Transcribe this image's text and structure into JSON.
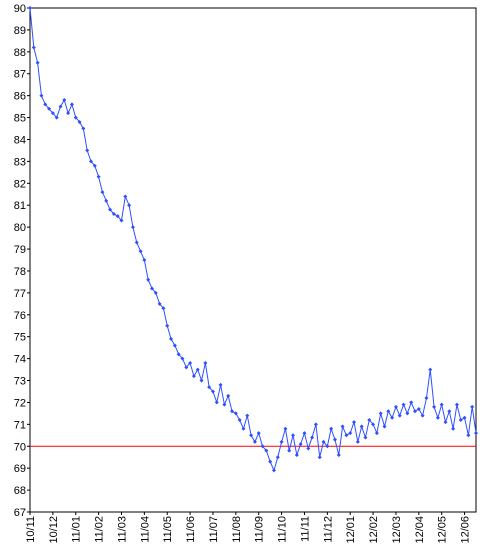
{
  "chart_data": {
    "type": "line",
    "categories": [
      "10/11",
      null,
      null,
      null,
      null,
      null,
      "10/12",
      null,
      null,
      null,
      null,
      null,
      "11/01",
      null,
      null,
      null,
      null,
      null,
      "11/02",
      null,
      null,
      null,
      null,
      null,
      "11/03",
      null,
      null,
      null,
      null,
      null,
      "11/04",
      null,
      null,
      null,
      null,
      null,
      "11/05",
      null,
      null,
      null,
      null,
      null,
      "11/06",
      null,
      null,
      null,
      null,
      null,
      "11/07",
      null,
      null,
      null,
      null,
      null,
      "11/08",
      null,
      null,
      null,
      null,
      null,
      "11/09",
      null,
      null,
      null,
      null,
      null,
      "11/10",
      null,
      null,
      null,
      null,
      null,
      "11/11",
      null,
      null,
      null,
      null,
      null,
      "11/12",
      null,
      null,
      null,
      null,
      null,
      "12/01",
      null,
      null,
      null,
      null,
      null,
      "12/02",
      null,
      null,
      null,
      null,
      null,
      "12/03",
      null,
      null,
      null,
      null,
      null,
      "12/04",
      null,
      null,
      null,
      null,
      null,
      "12/05",
      null,
      null,
      null,
      null,
      null,
      "12/06",
      null,
      null,
      null
    ],
    "series": [
      {
        "color": "#2f4fff",
        "values": [
          90,
          88.2,
          87.5,
          86,
          85.6,
          85.4,
          85.2,
          85,
          85.5,
          85.8,
          85.2,
          85.6,
          85,
          84.8,
          84.5,
          83.5,
          83,
          82.8,
          82.3,
          81.6,
          81.2,
          80.8,
          80.6,
          80.5,
          80.3,
          81.4,
          81,
          80,
          79.3,
          78.9,
          78.5,
          77.6,
          77.2,
          77,
          76.5,
          76.3,
          75.5,
          74.9,
          74.6,
          74.2,
          74,
          73.6,
          73.8,
          73.2,
          73.5,
          73,
          73.8,
          72.7,
          72.5,
          72,
          72.8,
          71.9,
          72.3,
          71.6,
          71.5,
          71.2,
          70.8,
          71.4,
          70.5,
          70.2,
          70.6,
          70,
          69.8,
          69.3,
          68.9,
          69.5,
          70.2,
          70.8,
          69.8,
          70.5,
          69.6,
          70.1,
          70.6,
          69.9,
          70.4,
          71,
          69.5,
          70.2,
          70,
          70.8,
          70.3,
          69.6,
          70.9,
          70.5,
          70.6,
          71.1,
          70.2,
          70.9,
          70.4,
          71.2,
          71,
          70.6,
          71.5,
          70.9,
          71.6,
          71.3,
          71.8,
          71.4,
          71.9,
          71.5,
          72,
          71.6,
          71.7,
          71.4,
          72.2,
          73.5,
          71.8,
          71.3,
          71.9,
          71.1,
          71.6,
          70.8,
          71.9,
          71.2,
          71.3,
          70.5,
          71.8,
          70.6
        ]
      }
    ],
    "ylim": [
      67,
      90
    ],
    "yticks": [
      67,
      68,
      69,
      70,
      71,
      72,
      73,
      74,
      75,
      76,
      77,
      78,
      79,
      80,
      81,
      82,
      83,
      84,
      85,
      86,
      87,
      88,
      89,
      90
    ],
    "reference_line": {
      "value": 70,
      "color": "#ff0000"
    }
  }
}
